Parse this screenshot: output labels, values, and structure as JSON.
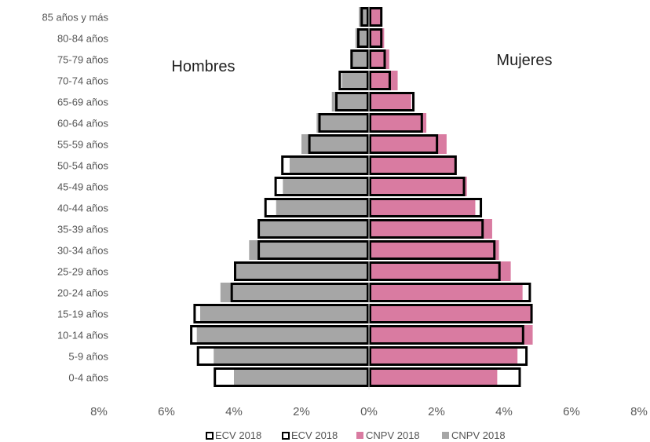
{
  "chart_data": {
    "type": "bar",
    "orientation": "horizontal",
    "subtype": "population-pyramid",
    "panel_labels": {
      "left": "Hombres",
      "right": "Mujeres"
    },
    "categories": [
      "0-4 años",
      "5-9 años",
      "10-14 años",
      "15-19 años",
      "20-24 años",
      "25-29 años",
      "30-34 años",
      "35-39 años",
      "40-44 años",
      "45-49 años",
      "50-54 años",
      "55-59 años",
      "60-64 años",
      "65-69 años",
      "70-74 años",
      "75-79 años",
      "80-84 años",
      "85 años y más"
    ],
    "x_ticks": [
      "8%",
      "6%",
      "4%",
      "2%",
      "0%",
      "2%",
      "4%",
      "6%",
      "8%"
    ],
    "xlim": [
      -8,
      8
    ],
    "grid": false,
    "legend_position": "bottom",
    "series": [
      {
        "name": "ECV 2018",
        "side": "men",
        "style": "outline",
        "color": "#000000",
        "values": [
          4.6,
          5.1,
          5.3,
          5.2,
          4.1,
          4.0,
          3.3,
          3.3,
          3.1,
          2.8,
          2.6,
          1.8,
          1.5,
          1.0,
          0.9,
          0.55,
          0.35,
          0.25
        ]
      },
      {
        "name": "ECV 2018",
        "side": "women",
        "style": "outline",
        "color": "#000000",
        "values": [
          4.5,
          4.7,
          4.6,
          4.85,
          4.8,
          3.9,
          3.75,
          3.4,
          3.35,
          2.85,
          2.6,
          2.05,
          1.6,
          1.35,
          0.65,
          0.5,
          0.4,
          0.4
        ]
      },
      {
        "name": "CNPV 2018",
        "side": "women",
        "style": "fill",
        "color": "#d97ba1",
        "values": [
          3.8,
          4.4,
          4.85,
          4.85,
          4.55,
          4.2,
          3.85,
          3.65,
          3.15,
          2.9,
          2.6,
          2.3,
          1.7,
          1.25,
          0.85,
          0.6,
          0.45,
          0.35
        ]
      },
      {
        "name": "CNPV 2018",
        "side": "men",
        "style": "fill",
        "color": "#a6a6a6",
        "values": [
          4.0,
          4.6,
          5.1,
          5.0,
          4.4,
          4.0,
          3.55,
          3.25,
          2.75,
          2.55,
          2.35,
          2.0,
          1.55,
          1.1,
          0.8,
          0.55,
          0.4,
          0.3
        ]
      }
    ]
  }
}
